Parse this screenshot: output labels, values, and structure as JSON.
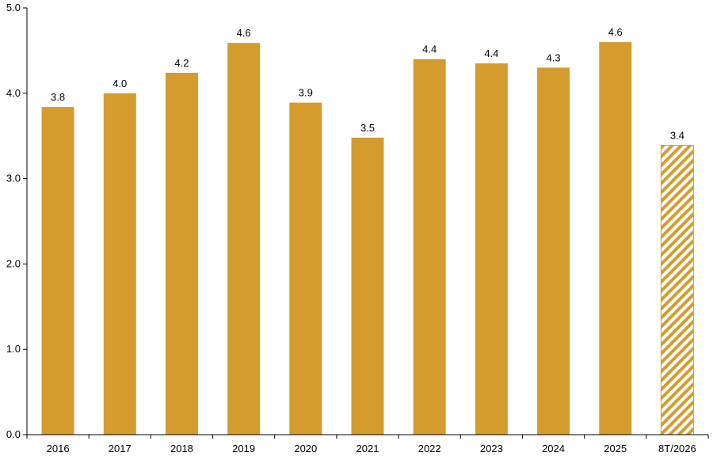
{
  "chart_data": {
    "type": "bar",
    "categories": [
      "2016",
      "2017",
      "2018",
      "2019",
      "2020",
      "2021",
      "2022",
      "2023",
      "2024",
      "2025",
      "8T/2026"
    ],
    "values": [
      3.84,
      4.0,
      4.24,
      4.59,
      3.89,
      3.48,
      4.4,
      4.35,
      4.3,
      4.6,
      3.39
    ],
    "value_labels": [
      "3.8",
      "4.0",
      "4.2",
      "4.6",
      "3.9",
      "3.5",
      "4.4",
      "4.4",
      "4.3",
      "4.6",
      "3.4"
    ],
    "hatched": [
      false,
      false,
      false,
      false,
      false,
      false,
      false,
      false,
      false,
      false,
      true
    ],
    "y_ticks": [
      "0.0",
      "1.0",
      "2.0",
      "3.0",
      "4.0",
      "5.0"
    ],
    "ylim": [
      0,
      5
    ],
    "title": "",
    "xlabel": "",
    "ylabel": "",
    "grid": false,
    "legend": "none",
    "bar_color": "#D49C2E",
    "axis_color": "#000000"
  }
}
